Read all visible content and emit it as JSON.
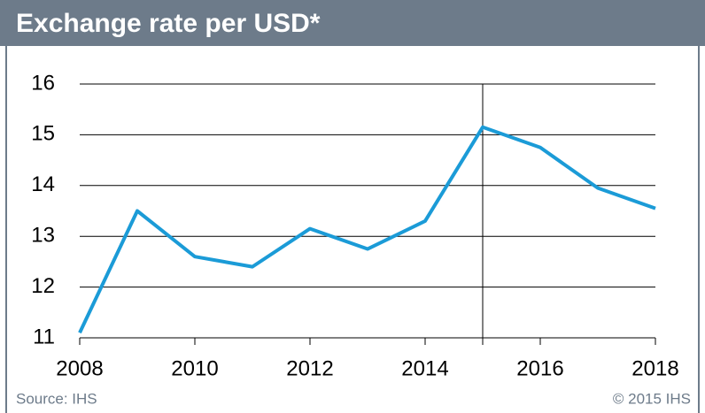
{
  "chart_data": {
    "type": "line",
    "title": "Exchange rate per USD*",
    "x": [
      2008,
      2009,
      2010,
      2011,
      2012,
      2013,
      2014,
      2015,
      2016,
      2017,
      2018
    ],
    "series": [
      {
        "name": "Exchange rate",
        "color": "#1b9bd7",
        "values": [
          11.1,
          13.5,
          12.6,
          12.4,
          13.15,
          12.75,
          13.3,
          15.15,
          14.75,
          13.95,
          13.55
        ]
      }
    ],
    "xlim": [
      2008,
      2018
    ],
    "xticks": [
      2008,
      2010,
      2012,
      2014,
      2016,
      2018
    ],
    "ylim": [
      11,
      16
    ],
    "yticks": [
      11,
      12,
      13,
      14,
      15,
      16
    ],
    "grid": true,
    "divider_x": 2015,
    "source": "Source: IHS",
    "copyright": "© 2015 IHS"
  }
}
